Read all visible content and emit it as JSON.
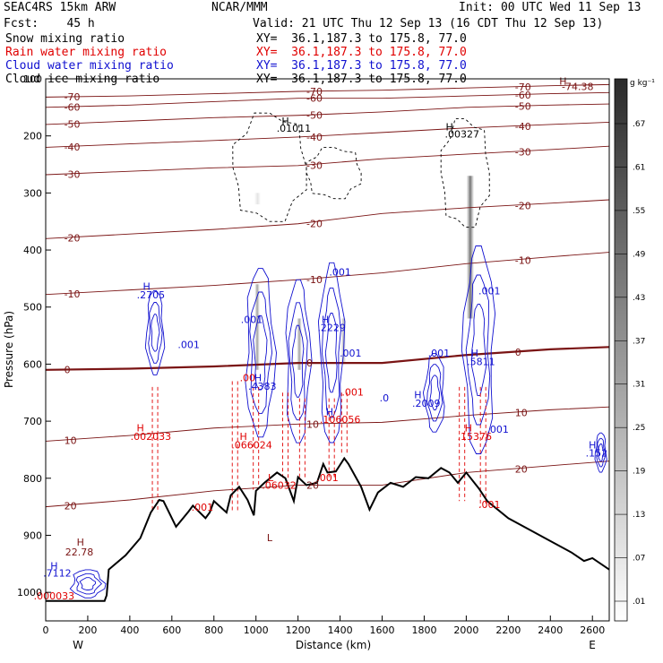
{
  "header": {
    "model": "SEAC4RS 15km ARW",
    "center": "NCAR/MMM",
    "init": "Init: 00 UTC Wed 11 Sep 13",
    "fcst": "Fcst:    45 h",
    "valid": "Valid: 21 UTC Thu 12 Sep 13 (16 CDT Thu 12 Sep 13)",
    "fields": [
      {
        "name": "Snow mixing ratio",
        "xy": "XY=  36.1,187.3 to 175.8, 77.0",
        "color": "#000000"
      },
      {
        "name": "Rain water mixing ratio",
        "xy": "XY=  36.1,187.3 to 175.8, 77.0",
        "color": "#e00000"
      },
      {
        "name": "Cloud water mixing ratio",
        "xy": "XY=  36.1,187.3 to 175.8, 77.0",
        "color": "#1010d0"
      },
      {
        "name": "Cloud ice mixing ratio",
        "xy": "XY=  36.1,187.3 to 175.8, 77.0",
        "color": "#000000"
      }
    ]
  },
  "colors": {
    "isotherm": "#7a1414",
    "freezing": "#7a1414",
    "terrain": "#000000",
    "rain": "#e00000",
    "cloud": "#1010d0"
  },
  "chart_data": {
    "type": "cross-section",
    "xlabel": "Distance (km)",
    "ylabel": "Pressure (hPa)",
    "xlim": [
      0,
      2680
    ],
    "ylim": [
      1050,
      100
    ],
    "x_ticks": [
      "0",
      "200",
      "400",
      "600",
      "800",
      "1000",
      "1200",
      "1400",
      "1600",
      "1800",
      "2000",
      "2200",
      "2400",
      "2600"
    ],
    "y_ticks": [
      "100",
      "200",
      "300",
      "400",
      "500",
      "600",
      "700",
      "800",
      "900",
      "1000"
    ],
    "end_labels": {
      "left": "W",
      "right": "E"
    },
    "colorbar": {
      "unit": "g kg⁻¹",
      "levels": [
        ".01",
        ".07",
        ".13",
        ".19",
        ".25",
        ".31",
        ".37",
        ".43",
        ".49",
        ".55",
        ".61",
        ".67"
      ]
    },
    "terrain": {
      "x": [
        0,
        280,
        290,
        300,
        380,
        450,
        500,
        540,
        560,
        620,
        680,
        700,
        760,
        780,
        800,
        860,
        880,
        920,
        960,
        990,
        1000,
        1040,
        1100,
        1140,
        1180,
        1200,
        1240,
        1290,
        1320,
        1340,
        1380,
        1420,
        1440,
        1500,
        1540,
        1580,
        1640,
        1700,
        1760,
        1820,
        1880,
        1920,
        1960,
        2000,
        2060,
        2100,
        2200,
        2300,
        2400,
        2500,
        2560,
        2600,
        2680
      ],
      "p": [
        1015,
        1015,
        1005,
        960,
        935,
        905,
        860,
        838,
        840,
        885,
        858,
        848,
        870,
        860,
        840,
        860,
        830,
        815,
        838,
        865,
        822,
        808,
        790,
        800,
        840,
        798,
        812,
        808,
        775,
        790,
        788,
        765,
        775,
        815,
        855,
        825,
        808,
        815,
        798,
        800,
        782,
        790,
        808,
        790,
        818,
        840,
        870,
        890,
        910,
        930,
        945,
        940,
        960
      ]
    },
    "isotherms": [
      {
        "label": "-70",
        "p": [
          132,
          130,
          126,
          122,
          120,
          116,
          112,
          110
        ]
      },
      {
        "label": "-60",
        "p": [
          150,
          146,
          140,
          134,
          134,
          130,
          126,
          124
        ]
      },
      {
        "label": "-50",
        "p": [
          180,
          174,
          168,
          164,
          158,
          150,
          146,
          144
        ]
      },
      {
        "label": "-40",
        "p": [
          220,
          214,
          208,
          202,
          194,
          186,
          180,
          176
        ]
      },
      {
        "label": "-30",
        "p": [
          268,
          262,
          256,
          252,
          240,
          232,
          224,
          218
        ]
      },
      {
        "label": "-20",
        "p": [
          380,
          372,
          364,
          354,
          336,
          326,
          318,
          312
        ]
      },
      {
        "label": "-10",
        "p": [
          478,
          470,
          462,
          452,
          440,
          424,
          412,
          404
        ]
      },
      {
        "label": "0",
        "p": [
          610,
          608,
          604,
          598,
          598,
          584,
          574,
          570
        ]
      },
      {
        "label": "10",
        "p": [
          735,
          725,
          712,
          705,
          702,
          690,
          680,
          675
        ]
      },
      {
        "label": "20",
        "p": [
          850,
          838,
          822,
          812,
          812,
          790,
          778,
          770
        ]
      }
    ],
    "isotherm_x": [
      0,
      400,
      800,
      1200,
      1600,
      2000,
      2400,
      2680
    ],
    "extra_temp_labels": [
      {
        "text": "-74.38",
        "x": 2530,
        "p": 120
      },
      {
        "text": "H",
        "x": 2460,
        "p": 110
      },
      {
        "text": "22.78",
        "x": 160,
        "p": 935
      },
      {
        "text": "H",
        "x": 165,
        "p": 918
      },
      {
        "text": "L",
        "x": 1065,
        "p": 910
      }
    ],
    "cloud_water_cells": [
      {
        "x": 520,
        "p0": 470,
        "p1": 620,
        "w": 80
      },
      {
        "x": 1020,
        "p0": 430,
        "p1": 730,
        "w": 130
      },
      {
        "x": 1200,
        "p0": 450,
        "p1": 740,
        "w": 110
      },
      {
        "x": 1360,
        "p0": 420,
        "p1": 740,
        "w": 110
      },
      {
        "x": 2060,
        "p0": 390,
        "p1": 760,
        "w": 140
      },
      {
        "x": 1850,
        "p0": 580,
        "p1": 720,
        "w": 90
      },
      {
        "x": 2640,
        "p0": 720,
        "p1": 790,
        "w": 50
      },
      {
        "x": 200,
        "p0": 960,
        "p1": 1010,
        "w": 150
      }
    ],
    "rain_shafts": [
      {
        "x": 520,
        "p0": 640,
        "p1": 860
      },
      {
        "x": 900,
        "p0": 630,
        "p1": 860
      },
      {
        "x": 1000,
        "p0": 640,
        "p1": 820
      },
      {
        "x": 1140,
        "p0": 650,
        "p1": 800
      },
      {
        "x": 1220,
        "p0": 660,
        "p1": 800
      },
      {
        "x": 1360,
        "p0": 660,
        "p1": 800
      },
      {
        "x": 1420,
        "p0": 650,
        "p1": 760
      },
      {
        "x": 1980,
        "p0": 640,
        "p1": 840
      },
      {
        "x": 2080,
        "p0": 640,
        "p1": 850
      }
    ],
    "ice_regions": [
      {
        "x0": 890,
        "x1": 1240,
        "p0": 160,
        "p1": 350
      },
      {
        "x0": 1240,
        "x1": 1500,
        "p0": 220,
        "p1": 310
      },
      {
        "x0": 1880,
        "x1": 2110,
        "p0": 170,
        "p1": 360
      }
    ],
    "snow_shading": [
      {
        "x": 1000,
        "p0": 300,
        "p1": 320,
        "w": 50,
        "o": 0.15
      },
      {
        "x": 2010,
        "p0": 270,
        "p1": 520,
        "w": 60,
        "o": 0.75
      },
      {
        "x": 1000,
        "p0": 460,
        "p1": 610,
        "w": 40,
        "o": 0.5
      },
      {
        "x": 1200,
        "p0": 520,
        "p1": 610,
        "w": 40,
        "o": 0.5
      },
      {
        "x": 1410,
        "p0": 520,
        "p1": 600,
        "w": 40,
        "o": 0.35
      }
    ],
    "annotations": [
      {
        "text": "H",
        "x": 1140,
        "p": 180,
        "c": "black"
      },
      {
        "text": ".01011",
        "x": 1180,
        "p": 193,
        "c": "black"
      },
      {
        "text": "H",
        "x": 1920,
        "p": 190,
        "c": "black"
      },
      {
        "text": ".00327",
        "x": 1980,
        "p": 203,
        "c": "black"
      },
      {
        "text": "H",
        "x": 480,
        "p": 470,
        "c": "blue"
      },
      {
        "text": ".2705",
        "x": 500,
        "p": 485,
        "c": "blue"
      },
      {
        "text": ".001",
        "x": 680,
        "p": 572,
        "c": "blue"
      },
      {
        "text": ".001",
        "x": 1400,
        "p": 445,
        "c": "blue"
      },
      {
        "text": "H",
        "x": 1330,
        "p": 528,
        "c": "blue"
      },
      {
        "text": ".2229",
        "x": 1360,
        "p": 542,
        "c": "blue"
      },
      {
        "text": ".001",
        "x": 980,
        "p": 528,
        "c": "blue"
      },
      {
        "text": ".001",
        "x": 1450,
        "p": 587,
        "c": "blue"
      },
      {
        "text": ".001",
        "x": 1870,
        "p": 587,
        "c": "blue"
      },
      {
        "text": ".001",
        "x": 2110,
        "p": 478,
        "c": "blue"
      },
      {
        "text": "H",
        "x": 2040,
        "p": 587,
        "c": "blue"
      },
      {
        "text": ".5811",
        "x": 2070,
        "p": 602,
        "c": "blue"
      },
      {
        "text": ".001",
        "x": 2150,
        "p": 720,
        "c": "blue"
      },
      {
        "text": "H",
        "x": 2600,
        "p": 748,
        "c": "blue"
      },
      {
        "text": ".152",
        "x": 2620,
        "p": 762,
        "c": "blue"
      },
      {
        "text": "H",
        "x": 1010,
        "p": 630,
        "c": "blue"
      },
      {
        "text": ".4383",
        "x": 1030,
        "p": 645,
        "c": "blue"
      },
      {
        "text": ".0",
        "x": 1610,
        "p": 665,
        "c": "blue"
      },
      {
        "text": "H",
        "x": 1770,
        "p": 660,
        "c": "blue"
      },
      {
        "text": ".2009",
        "x": 1810,
        "p": 675,
        "c": "blue"
      },
      {
        "text": "H",
        "x": 40,
        "p": 960,
        "c": "blue"
      },
      {
        "text": ".7112",
        "x": 55,
        "p": 972,
        "c": "blue"
      },
      {
        "text": "H",
        "x": 1350,
        "p": 690,
        "c": "blue"
      },
      {
        "text": ".106056",
        "x": 1400,
        "p": 703,
        "c": "red"
      },
      {
        "text": ".00",
        "x": 960,
        "p": 630,
        "c": "red"
      },
      {
        "text": ".001",
        "x": 1460,
        "p": 655,
        "c": "red"
      },
      {
        "text": "H",
        "x": 450,
        "p": 718,
        "c": "red"
      },
      {
        "text": ".002033",
        "x": 500,
        "p": 733,
        "c": "red"
      },
      {
        "text": "H",
        "x": 940,
        "p": 733,
        "c": "red"
      },
      {
        "text": ".066024",
        "x": 980,
        "p": 748,
        "c": "red"
      },
      {
        "text": "L",
        "x": 1070,
        "p": 805,
        "c": "red"
      },
      {
        "text": ".06032",
        "x": 1110,
        "p": 818,
        "c": "red"
      },
      {
        "text": "H",
        "x": 2010,
        "p": 718,
        "c": "red"
      },
      {
        "text": ".15376",
        "x": 2040,
        "p": 733,
        "c": "red"
      },
      {
        "text": ".001",
        "x": 745,
        "p": 857,
        "c": "red"
      },
      {
        "text": ".001",
        "x": 1340,
        "p": 805,
        "c": "red"
      },
      {
        "text": ".001",
        "x": 2110,
        "p": 852,
        "c": "red"
      },
      {
        "text": ".000033",
        "x": 40,
        "p": 1012,
        "c": "red"
      }
    ]
  }
}
